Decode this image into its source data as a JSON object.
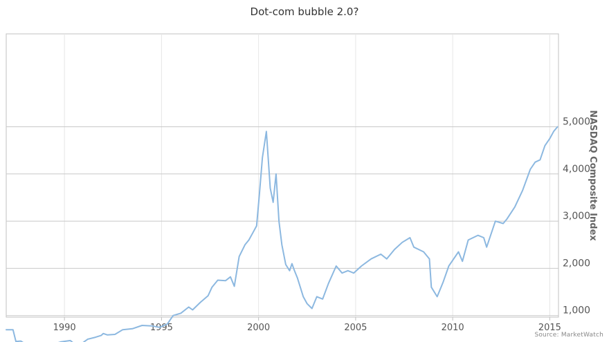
{
  "chart_data": {
    "type": "line",
    "title": "Dot-com bubble 2.0?",
    "ylabel": "NASDAQ Composite Index",
    "xlabel": "",
    "xlim": [
      1987.0,
      2015.45
    ],
    "ylim": [
      0,
      6000
    ],
    "x_ticks": [
      1990,
      1995,
      2000,
      2005,
      2010,
      2015
    ],
    "y_ticks": [
      1000,
      2000,
      3000,
      4000,
      5000
    ],
    "x_tick_labels": [
      "1990",
      "1995",
      "2000",
      "2005",
      "2010",
      "2015"
    ],
    "y_tick_labels": [
      "1,000",
      "2,000",
      "3,000",
      "4,000",
      "5,000"
    ],
    "grid": true,
    "y_axis_side": "right",
    "line_color": "#8cb8e0",
    "series": [
      {
        "name": "",
        "x": [
          1987.0,
          1987.35,
          1987.5,
          1987.75,
          1987.9,
          1988.1,
          1988.3,
          1988.6,
          1989.0,
          1989.4,
          1989.8,
          1990.3,
          1990.45,
          1990.6,
          1990.8,
          1991.2,
          1991.6,
          1991.9,
          1992.0,
          1992.2,
          1992.6,
          1993.0,
          1993.5,
          1994.0,
          1994.5,
          1994.9,
          1995.3,
          1995.6,
          1996.0,
          1996.4,
          1996.6,
          1997.0,
          1997.4,
          1997.6,
          1997.9,
          1998.3,
          1998.55,
          1998.75,
          1999.0,
          1999.3,
          1999.5,
          1999.7,
          1999.9,
          2000.05,
          2000.2,
          2000.4,
          2000.6,
          2000.75,
          2000.9,
          2001.05,
          2001.2,
          2001.4,
          2001.6,
          2001.72,
          2001.85,
          2002.0,
          2002.3,
          2002.5,
          2002.75,
          2003.0,
          2003.3,
          2003.6,
          2004.0,
          2004.3,
          2004.6,
          2004.9,
          2005.3,
          2005.8,
          2006.3,
          2006.6,
          2007.0,
          2007.4,
          2007.8,
          2008.0,
          2008.5,
          2008.8,
          2008.9,
          2009.2,
          2009.5,
          2009.8,
          2010.3,
          2010.5,
          2010.8,
          2011.3,
          2011.6,
          2011.75,
          2012.2,
          2012.6,
          2012.8,
          2013.2,
          2013.6,
          2014.0,
          2014.25,
          2014.5,
          2014.75,
          2015.0,
          2015.2,
          2015.4
        ],
        "y": [
          700,
          700,
          450,
          460,
          420,
          330,
          360,
          380,
          380,
          390,
          440,
          470,
          420,
          360,
          380,
          500,
          540,
          580,
          620,
          590,
          600,
          700,
          720,
          790,
          780,
          750,
          820,
          1000,
          1050,
          1180,
          1120,
          1280,
          1420,
          1600,
          1750,
          1740,
          1820,
          1620,
          2250,
          2500,
          2600,
          2750,
          2900,
          3600,
          4350,
          4900,
          3700,
          3400,
          4000,
          3000,
          2500,
          2080,
          1950,
          2100,
          1950,
          1800,
          1400,
          1250,
          1150,
          1400,
          1350,
          1680,
          2050,
          1900,
          1950,
          1900,
          2050,
          2200,
          2300,
          2200,
          2400,
          2550,
          2650,
          2450,
          2350,
          2200,
          1600,
          1400,
          1700,
          2050,
          2350,
          2150,
          2600,
          2700,
          2650,
          2450,
          3000,
          2950,
          3050,
          3300,
          3650,
          4100,
          4250,
          4300,
          4600,
          4750,
          4900,
          5000
        ]
      }
    ],
    "source": "Source: MarketWatch"
  }
}
